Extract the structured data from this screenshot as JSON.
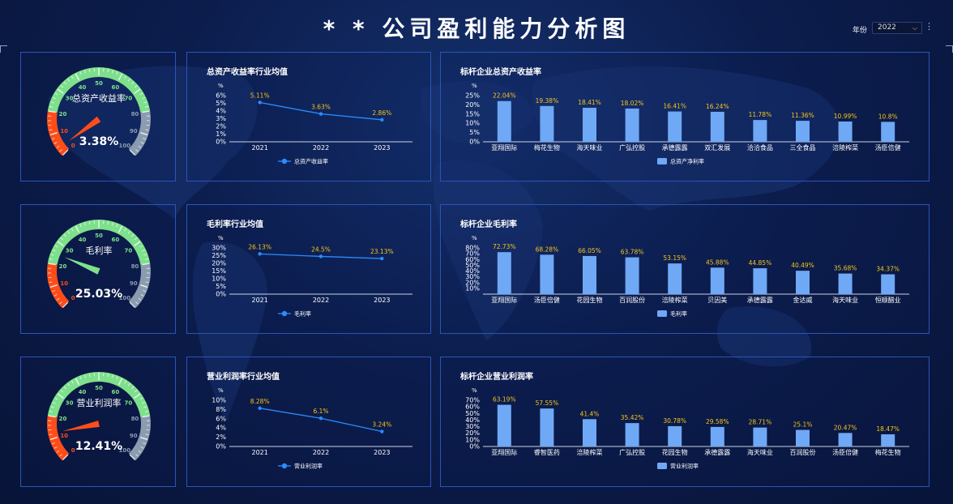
{
  "page": {
    "title": "* * 公司盈利能力分析图"
  },
  "year_filter": {
    "label": "年份",
    "value": "2022"
  },
  "gauges": [
    {
      "label": "总资产收益率",
      "value": 3.38,
      "value_text": "3.38%"
    },
    {
      "label": "毛利率",
      "value": 25.03,
      "value_text": "25.03%"
    },
    {
      "label": "营业利润率",
      "value": 12.41,
      "value_text": "12.41%"
    }
  ],
  "gauge_scale": {
    "ticks": [
      "0",
      "10",
      "20",
      "30",
      "40",
      "50",
      "60",
      "70",
      "80",
      "90",
      "100"
    ],
    "colors": {
      "red": "#ff4d1a",
      "green": "#7ee08c",
      "gray": "#8b9bb0"
    }
  },
  "chart_data": [
    {
      "type": "line",
      "title": "总资产收益率行业均值",
      "ylabel": "%",
      "categories": [
        "2021",
        "2022",
        "2023"
      ],
      "series": [
        {
          "name": "总资产收益率",
          "values": [
            5.11,
            3.63,
            2.86
          ]
        }
      ],
      "value_labels": [
        "5.11%",
        "3.63%",
        "2.86%"
      ],
      "yticks": [
        "0%",
        "1%",
        "2%",
        "3%",
        "4%",
        "5%",
        "6%"
      ],
      "ylim": [
        0,
        6
      ],
      "legend": "bottom-center"
    },
    {
      "type": "bar",
      "title": "标杆企业总资产收益率",
      "ylabel": "%",
      "categories": [
        "亚翔国际",
        "梅花生物",
        "海天味业",
        "广弘控股",
        "承德露露",
        "双汇发展",
        "洽洽食品",
        "三全食品",
        "涪陵榨菜",
        "汤臣倍健"
      ],
      "series": [
        {
          "name": "总资产净利率",
          "values": [
            22.04,
            19.38,
            18.41,
            18.02,
            16.41,
            16.24,
            11.78,
            11.36,
            10.99,
            10.8
          ]
        }
      ],
      "value_labels": [
        "22.04%",
        "19.38%",
        "18.41%",
        "18.02%",
        "16.41%",
        "16.24%",
        "11.78%",
        "11.36%",
        "10.99%",
        "10.8%"
      ],
      "yticks": [
        "0%",
        "5%",
        "10%",
        "15%",
        "20%",
        "25%"
      ],
      "ylim": [
        0,
        25
      ],
      "legend": "bottom-center"
    },
    {
      "type": "line",
      "title": "毛利率行业均值",
      "ylabel": "%",
      "categories": [
        "2021",
        "2022",
        "2023"
      ],
      "series": [
        {
          "name": "毛利率",
          "values": [
            26.13,
            24.5,
            23.13
          ]
        }
      ],
      "value_labels": [
        "26.13%",
        "24.5%",
        "23.13%"
      ],
      "yticks": [
        "0%",
        "5%",
        "10%",
        "15%",
        "20%",
        "25%",
        "30%"
      ],
      "ylim": [
        0,
        30
      ],
      "legend": "bottom-center"
    },
    {
      "type": "bar",
      "title": "标杆企业毛利率",
      "ylabel": "%",
      "categories": [
        "亚翔国际",
        "汤臣倍健",
        "花园生物",
        "百润股份",
        "涪陵榨菜",
        "贝因美",
        "承德露露",
        "金达威",
        "海天味业",
        "恒顺醋业"
      ],
      "series": [
        {
          "name": "毛利率",
          "values": [
            72.73,
            68.28,
            66.05,
            63.78,
            53.15,
            45.88,
            44.85,
            40.49,
            35.68,
            34.37
          ]
        }
      ],
      "value_labels": [
        "72.73%",
        "68.28%",
        "66.05%",
        "63.78%",
        "53.15%",
        "45.88%",
        "44.85%",
        "40.49%",
        "35.68%",
        "34.37%"
      ],
      "yticks": [
        "10%",
        "20%",
        "30%",
        "40%",
        "50%",
        "60%",
        "70%",
        "80%"
      ],
      "ylim": [
        0,
        80
      ],
      "legend": "bottom-center"
    },
    {
      "type": "line",
      "title": "营业利润率行业均值",
      "ylabel": "%",
      "categories": [
        "2021",
        "2022",
        "2023"
      ],
      "series": [
        {
          "name": "营业利润率",
          "values": [
            8.28,
            6.1,
            3.24
          ]
        }
      ],
      "value_labels": [
        "8.28%",
        "6.1%",
        "3.24%"
      ],
      "yticks": [
        "0%",
        "2%",
        "4%",
        "6%",
        "8%",
        "10%"
      ],
      "ylim": [
        0,
        10
      ],
      "legend": "bottom-center"
    },
    {
      "type": "bar",
      "title": "标杆企业营业利润率",
      "ylabel": "%",
      "categories": [
        "亚翔国际",
        "睿智医药",
        "涪陵榨菜",
        "广弘控股",
        "花园生物",
        "承德露露",
        "海天味业",
        "百润股份",
        "汤臣倍健",
        "梅花生物"
      ],
      "series": [
        {
          "name": "营业利润率",
          "values": [
            63.19,
            57.55,
            41.4,
            35.42,
            30.78,
            29.58,
            28.71,
            25.1,
            20.47,
            18.47
          ]
        }
      ],
      "value_labels": [
        "63.19%",
        "57.55%",
        "41.4%",
        "35.42%",
        "30.78%",
        "29.58%",
        "28.71%",
        "25.1%",
        "20.47%",
        "18.47%"
      ],
      "yticks": [
        "0%",
        "10%",
        "20%",
        "30%",
        "40%",
        "50%",
        "60%",
        "70%"
      ],
      "ylim": [
        0,
        70
      ],
      "legend": "bottom-center"
    }
  ],
  "colors": {
    "line": "#2b8cff",
    "bar": "#6fa8f5",
    "value_label": "#f5c518",
    "axis_text": "#ffffff"
  }
}
